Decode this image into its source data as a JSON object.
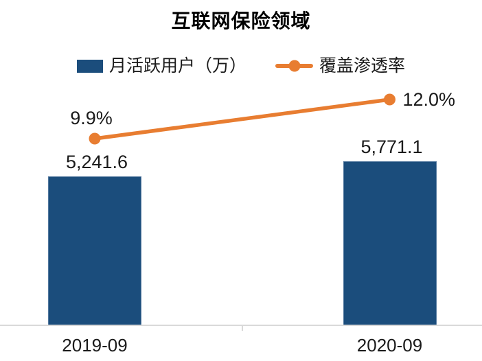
{
  "title": "互联网保险领域",
  "chart_data": {
    "type": "combo",
    "categories": [
      "2019-09",
      "2020-09"
    ],
    "series": [
      {
        "name": "月活跃用户（万）",
        "type": "bar",
        "values": [
          5241.6,
          5771.1
        ],
        "labels": [
          "5,241.6",
          "5,771.1"
        ],
        "color": "#1B4D7C"
      },
      {
        "name": "覆盖渗透率",
        "type": "line",
        "values": [
          9.9,
          12.0
        ],
        "labels": [
          "9.9%",
          "12.0%"
        ],
        "color": "#E87D31"
      }
    ],
    "title": "互联网保险领域",
    "xlabel": "",
    "ylabel": "",
    "grid": false,
    "legend_position": "top",
    "value_labels_shown": true
  },
  "colors": {
    "bar": "#1B4D7C",
    "line": "#E87D31",
    "axis": "#D9D9D9",
    "text": "#1A1A1A"
  }
}
